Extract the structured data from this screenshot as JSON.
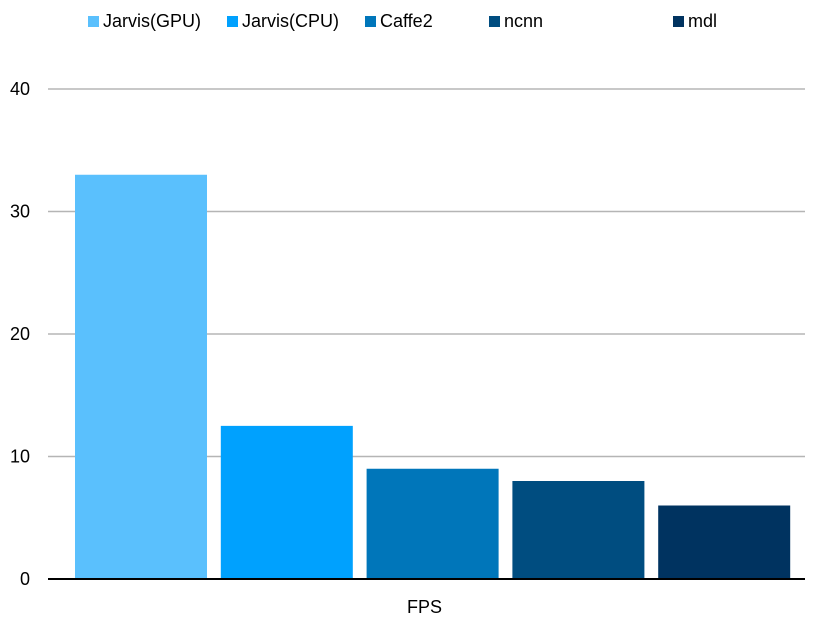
{
  "chart_data": {
    "type": "bar",
    "title": "",
    "xlabel": "",
    "ylabel": "",
    "categories": [
      "FPS"
    ],
    "series": [
      {
        "name": "Jarvis(GPU)",
        "values": [
          33
        ],
        "color": "#5ac0fd"
      },
      {
        "name": "Jarvis(CPU)",
        "values": [
          12.5
        ],
        "color": "#00a1fe"
      },
      {
        "name": "Caffe2",
        "values": [
          9
        ],
        "color": "#0076ba"
      },
      {
        "name": "ncnn",
        "values": [
          8
        ],
        "color": "#004d80"
      },
      {
        "name": "mdl",
        "values": [
          6
        ],
        "color": "#003360"
      }
    ],
    "ylim": [
      0,
      40
    ],
    "yticks": [
      "0",
      "10",
      "20",
      "30",
      "40"
    ],
    "grid": true,
    "legend": "top"
  }
}
